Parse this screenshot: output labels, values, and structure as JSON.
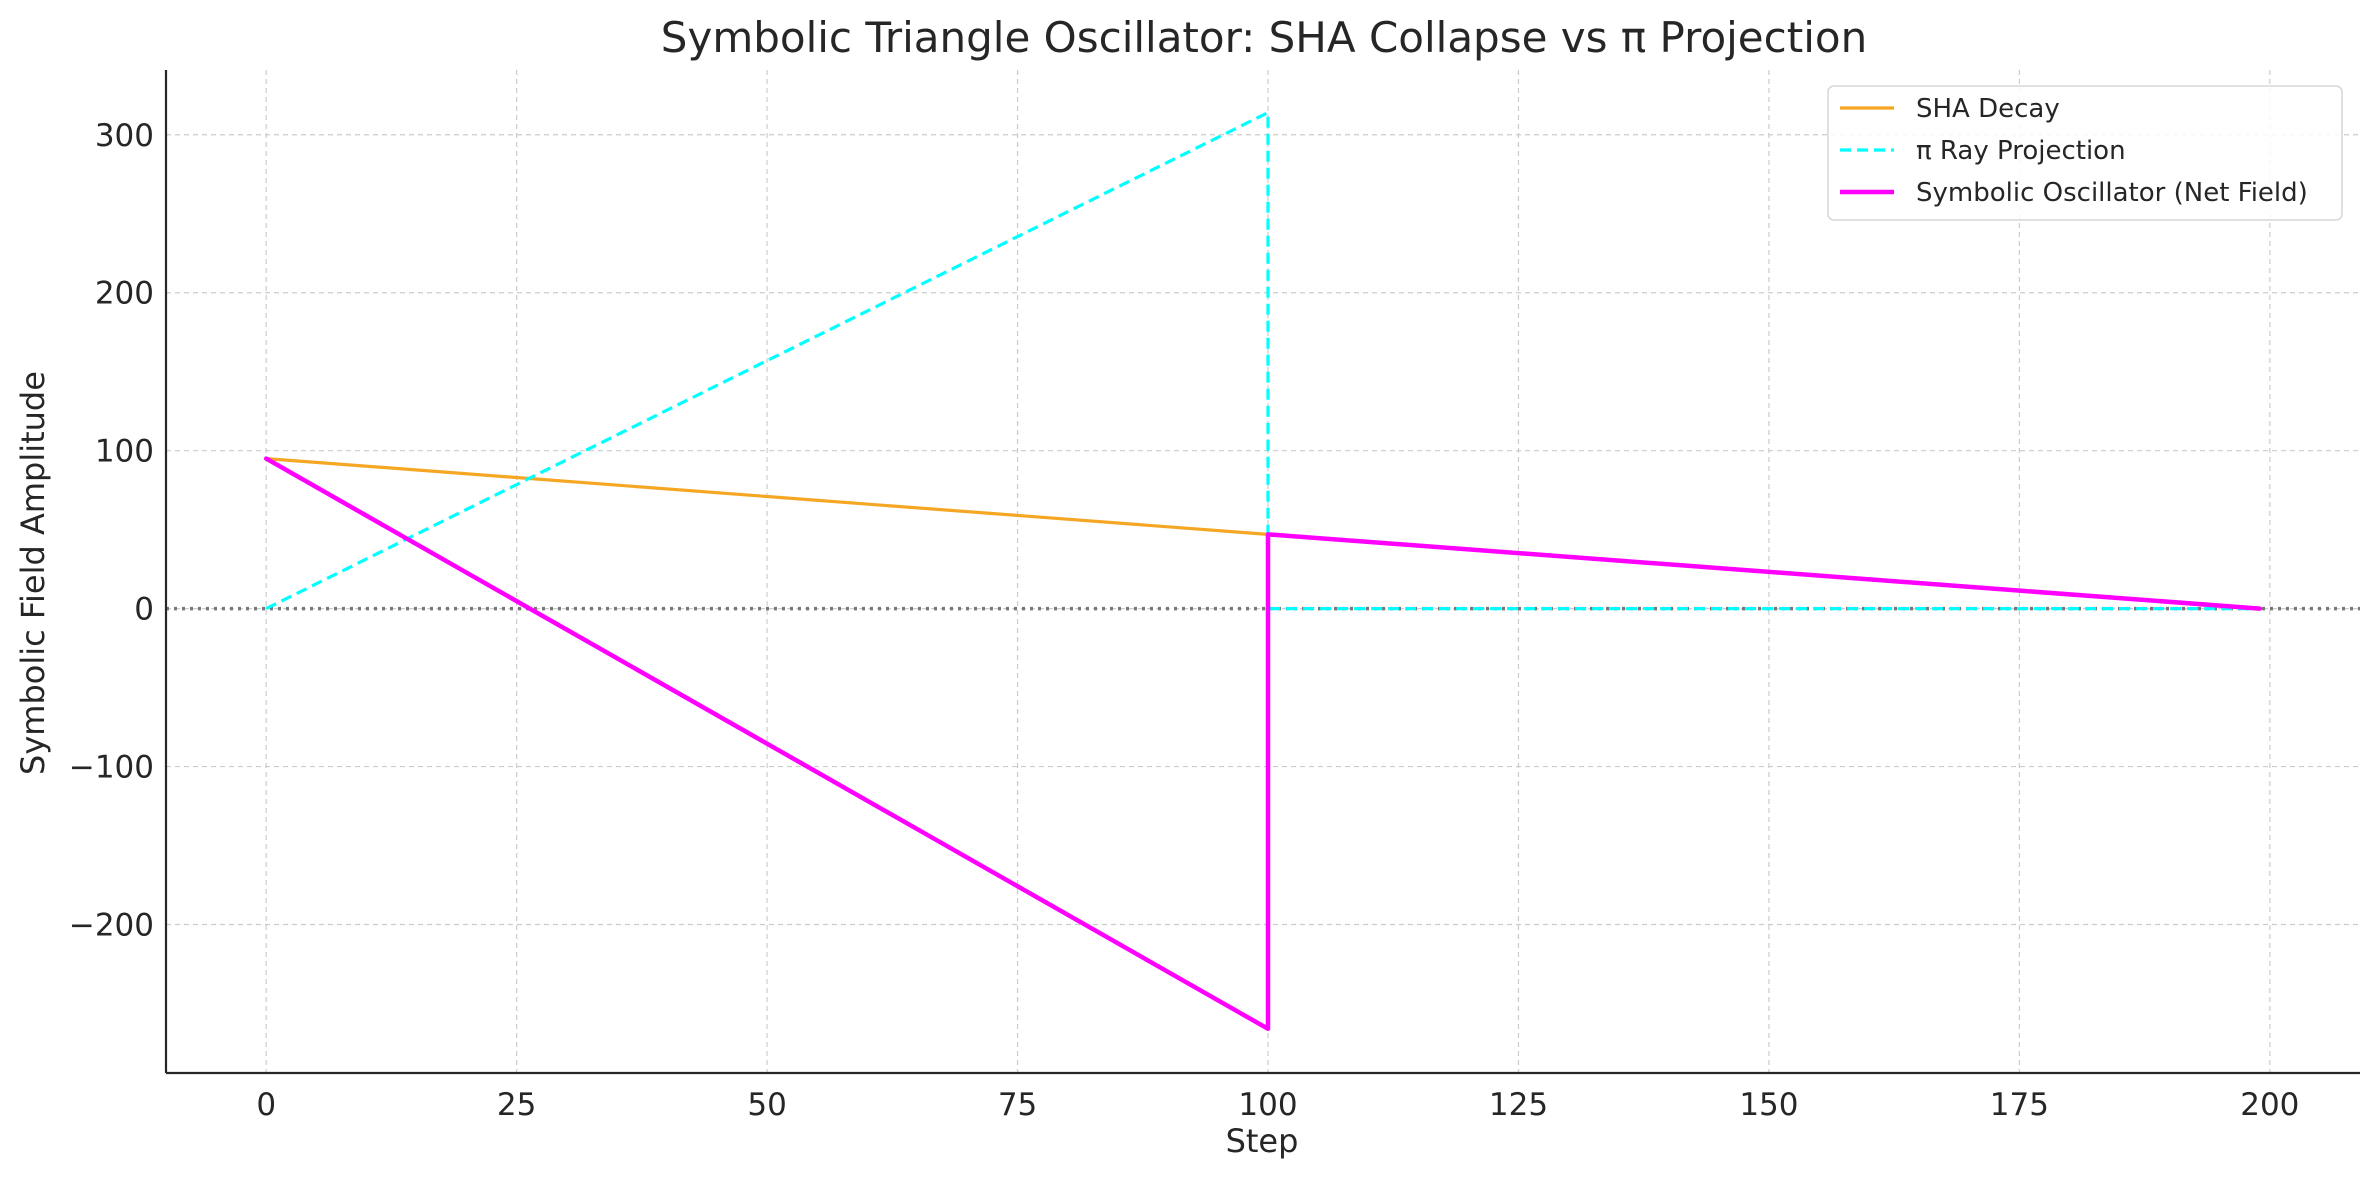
{
  "chart_data": {
    "type": "line",
    "title": "Symbolic Triangle Oscillator: SHA Collapse vs π Projection",
    "xlabel": "Step",
    "ylabel": "Symbolic Field Amplitude",
    "xlim": [
      -10,
      209
    ],
    "ylim": [
      -294,
      341
    ],
    "xticks": [
      0,
      25,
      50,
      75,
      100,
      125,
      150,
      175,
      200
    ],
    "xtick_labels": [
      "0",
      "25",
      "50",
      "75",
      "100",
      "125",
      "150",
      "175",
      "200"
    ],
    "yticks": [
      -200,
      -100,
      0,
      100,
      200,
      300
    ],
    "ytick_labels": [
      "−200",
      "−100",
      "0",
      "100",
      "200",
      "300"
    ],
    "grid": true,
    "legend_position": "top-right",
    "reference_line": {
      "y": 0,
      "style": "dotted",
      "color": "#777777"
    },
    "series": [
      {
        "name": "SHA Decay",
        "color": "#f5a623",
        "dash": "solid",
        "x": [
          0,
          100,
          199
        ],
        "y": [
          95,
          47,
          0
        ]
      },
      {
        "name": "π Ray Projection",
        "color": "#00ffff",
        "dash": "dashed",
        "x": [
          0,
          100,
          100,
          199
        ],
        "y": [
          0,
          314,
          0,
          0
        ]
      },
      {
        "name": "Symbolic Oscillator (Net Field)",
        "color": "#ff00ff",
        "dash": "solid",
        "x": [
          0,
          100,
          100,
          199
        ],
        "y": [
          95,
          -266,
          47,
          0
        ]
      }
    ]
  }
}
